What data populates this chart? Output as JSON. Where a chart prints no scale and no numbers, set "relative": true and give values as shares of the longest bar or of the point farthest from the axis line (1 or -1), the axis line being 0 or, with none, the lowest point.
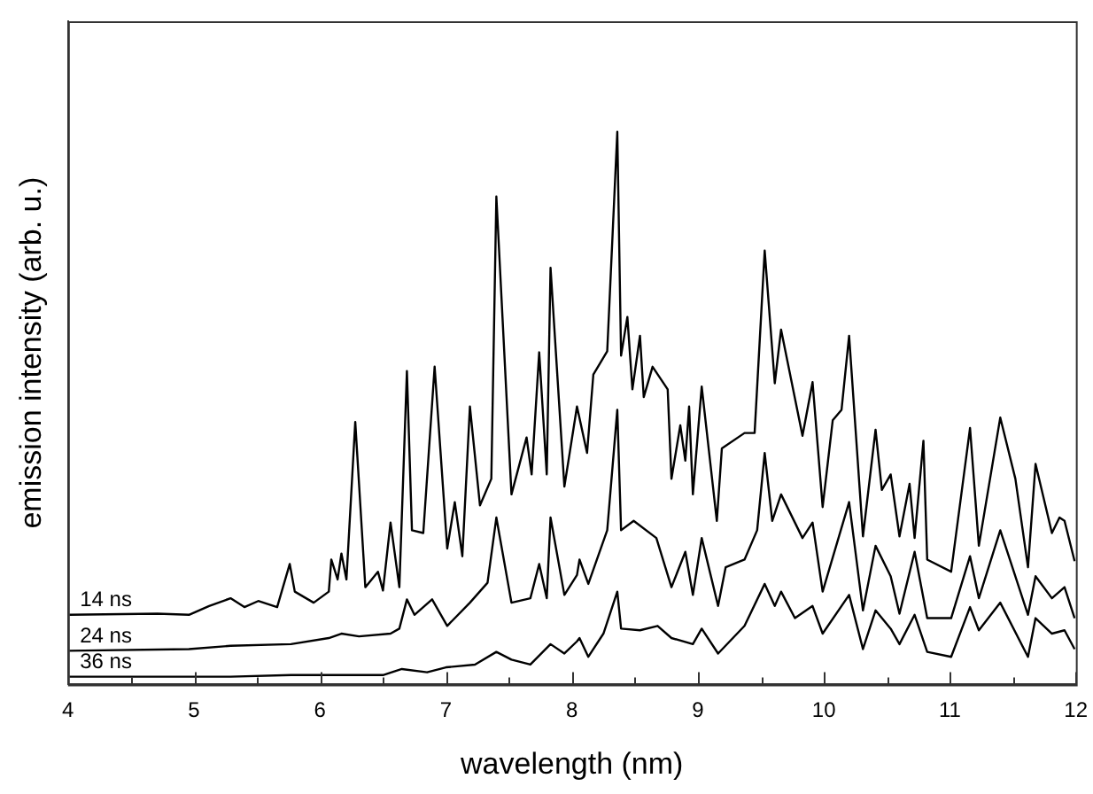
{
  "chart_data": {
    "type": "line",
    "xlabel": "wavelength (nm)",
    "ylabel": "emission intensity (arb. u.)",
    "relative": true,
    "legend": false,
    "grid": false,
    "marker": "none",
    "line_style": "solid",
    "xlim": [
      4,
      12
    ],
    "xticks": [
      4,
      {
        "value": 4.5,
        "label": null
      },
      5,
      {
        "value": 5.5,
        "label": null
      },
      6,
      {
        "value": 6.5,
        "label": null
      },
      7,
      {
        "value": 7.5,
        "label": null
      },
      8,
      {
        "value": 8.5,
        "label": null
      },
      9,
      {
        "value": 9.5,
        "label": null
      },
      10,
      {
        "value": 10.5,
        "label": null
      },
      11,
      {
        "value": 11.5,
        "label": null
      },
      12
    ],
    "series": [
      {
        "name": "14 ns",
        "color": "#000000",
        "x": [
          4.01,
          4.71,
          4.96,
          5.12,
          5.29,
          5.4,
          5.51,
          5.66,
          5.76,
          5.8,
          5.95,
          6.07,
          6.09,
          6.14,
          6.17,
          6.21,
          6.28,
          6.36,
          6.46,
          6.5,
          6.56,
          6.63,
          6.69,
          6.73,
          6.82,
          6.91,
          7.01,
          7.07,
          7.13,
          7.19,
          7.27,
          7.36,
          7.4,
          7.52,
          7.64,
          7.68,
          7.74,
          7.8,
          7.83,
          7.94,
          8.04,
          8.12,
          8.17,
          8.28,
          8.36,
          8.39,
          8.44,
          8.48,
          8.54,
          8.57,
          8.64,
          8.76,
          8.79,
          8.86,
          8.9,
          8.93,
          8.96,
          9.03,
          9.15,
          9.19,
          9.37,
          9.45,
          9.53,
          9.61,
          9.66,
          9.83,
          9.91,
          9.99,
          10.07,
          10.14,
          10.2,
          10.31,
          10.41,
          10.46,
          10.53,
          10.6,
          10.68,
          10.72,
          10.79,
          10.82,
          11.01,
          11.16,
          11.23,
          11.4,
          11.52,
          11.62,
          11.68,
          11.81,
          11.87,
          11.91,
          11.99
        ],
        "values": [
          0.126,
          0.128,
          0.126,
          0.142,
          0.156,
          0.14,
          0.151,
          0.14,
          0.218,
          0.168,
          0.148,
          0.168,
          0.226,
          0.19,
          0.237,
          0.19,
          0.475,
          0.176,
          0.204,
          0.17,
          0.293,
          0.176,
          0.567,
          0.279,
          0.274,
          0.575,
          0.246,
          0.33,
          0.232,
          0.503,
          0.324,
          0.372,
          0.883,
          0.344,
          0.447,
          0.38,
          0.601,
          0.38,
          0.754,
          0.358,
          0.503,
          0.419,
          0.561,
          0.603,
          1,
          0.595,
          0.665,
          0.534,
          0.631,
          0.52,
          0.575,
          0.534,
          0.372,
          0.469,
          0.405,
          0.503,
          0.344,
          0.539,
          0.296,
          0.427,
          0.455,
          0.455,
          0.785,
          0.545,
          0.642,
          0.45,
          0.547,
          0.321,
          0.478,
          0.497,
          0.631,
          0.268,
          0.461,
          0.352,
          0.38,
          0.268,
          0.363,
          0.265,
          0.441,
          0.226,
          0.204,
          0.464,
          0.251,
          0.483,
          0.372,
          0.212,
          0.399,
          0.274,
          0.302,
          0.296,
          0.223
        ]
      },
      {
        "name": "24 ns",
        "color": "#000000",
        "x": [
          4.01,
          4.96,
          5.29,
          5.77,
          6.07,
          6.17,
          6.31,
          6.56,
          6.63,
          6.69,
          6.75,
          6.89,
          7.01,
          7.19,
          7.33,
          7.4,
          7.52,
          7.67,
          7.74,
          7.8,
          7.83,
          7.94,
          8.04,
          8.06,
          8.13,
          8.28,
          8.36,
          8.39,
          8.49,
          8.67,
          8.79,
          8.9,
          8.96,
          9.03,
          9.16,
          9.22,
          9.37,
          9.47,
          9.53,
          9.59,
          9.66,
          9.83,
          9.91,
          9.99,
          10.2,
          10.31,
          10.41,
          10.53,
          10.6,
          10.72,
          10.82,
          11.01,
          11.16,
          11.23,
          11.4,
          11.62,
          11.68,
          11.81,
          11.91,
          11.99
        ],
        "values": [
          0.061,
          0.064,
          0.07,
          0.073,
          0.084,
          0.092,
          0.087,
          0.092,
          0.101,
          0.154,
          0.126,
          0.154,
          0.106,
          0.148,
          0.184,
          0.302,
          0.148,
          0.156,
          0.218,
          0.156,
          0.302,
          0.162,
          0.198,
          0.226,
          0.182,
          0.279,
          0.497,
          0.279,
          0.296,
          0.265,
          0.176,
          0.24,
          0.162,
          0.265,
          0.142,
          0.212,
          0.226,
          0.279,
          0.419,
          0.296,
          0.344,
          0.265,
          0.293,
          0.168,
          0.33,
          0.134,
          0.251,
          0.196,
          0.128,
          0.24,
          0.12,
          0.12,
          0.232,
          0.156,
          0.279,
          0.126,
          0.196,
          0.156,
          0.176,
          0.12
        ]
      },
      {
        "name": "36 ns",
        "color": "#000000",
        "x": [
          4.01,
          5.29,
          5.77,
          6.5,
          6.65,
          6.85,
          7.0,
          7.23,
          7.4,
          7.52,
          7.67,
          7.83,
          7.94,
          8.04,
          8.06,
          8.13,
          8.25,
          8.36,
          8.39,
          8.54,
          8.68,
          8.79,
          8.96,
          9.03,
          9.16,
          9.37,
          9.53,
          9.61,
          9.66,
          9.77,
          9.91,
          9.99,
          10.2,
          10.31,
          10.41,
          10.53,
          10.6,
          10.72,
          10.82,
          11.01,
          11.16,
          11.23,
          11.4,
          11.62,
          11.68,
          11.81,
          11.91,
          11.99
        ],
        "values": [
          0.014,
          0.014,
          0.017,
          0.017,
          0.028,
          0.022,
          0.031,
          0.036,
          0.059,
          0.045,
          0.036,
          0.073,
          0.056,
          0.078,
          0.084,
          0.05,
          0.092,
          0.168,
          0.101,
          0.098,
          0.106,
          0.084,
          0.073,
          0.101,
          0.056,
          0.106,
          0.182,
          0.142,
          0.168,
          0.12,
          0.142,
          0.092,
          0.162,
          0.064,
          0.134,
          0.101,
          0.073,
          0.126,
          0.059,
          0.05,
          0.14,
          0.098,
          0.148,
          0.05,
          0.12,
          0.092,
          0.098,
          0.064
        ]
      }
    ]
  }
}
